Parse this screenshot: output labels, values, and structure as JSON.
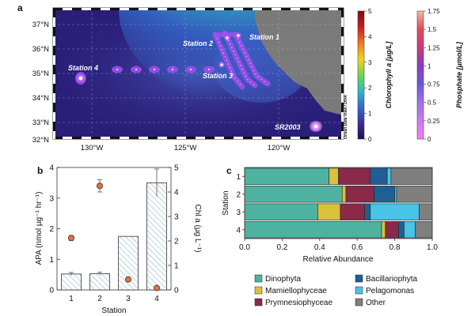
{
  "figure": {
    "panel_labels": [
      "a",
      "b",
      "c"
    ]
  },
  "map": {
    "lat_ticks": [
      "37°N",
      "36°N",
      "35°N",
      "34°N",
      "33°N",
      "32°N"
    ],
    "lon_ticks": [
      "130°W",
      "125°W",
      "120°W"
    ],
    "watermark": "Ocean Data View / DIVA",
    "stations": [
      {
        "name": "Station 1",
        "lon": -120.6,
        "lat": 36.3
      },
      {
        "name": "Station 2",
        "lon": -121.6,
        "lat": 36.2
      },
      {
        "name": "Station 3",
        "lon": -122.0,
        "lat": 35.15
      },
      {
        "name": "Station 4",
        "lon": -129.9,
        "lat": 34.7
      },
      {
        "name": "SR2003",
        "lon": -118.6,
        "lat": 32.55
      }
    ],
    "colorbar_chl": {
      "label": "Chlorophyll a [µg/L]",
      "ticks": [
        "5",
        "4",
        "3",
        "2",
        "1",
        "0"
      ],
      "colors": [
        "#7a0d0d",
        "#c81e1e",
        "#f07820",
        "#f2d21a",
        "#6fd650",
        "#2fb8c8",
        "#3468cc",
        "#3a2f9a",
        "#1c1050"
      ]
    },
    "colorbar_po4": {
      "label": "Phosphate [µmol/L]",
      "ticks": [
        "1.75",
        "1.5",
        "1.25",
        "1",
        "0.75",
        "0.5",
        "0.25",
        "0"
      ],
      "colors": [
        "#f2b8a0",
        "#e6475a",
        "#c83c7a",
        "#8a3cc8",
        "#6a58e0",
        "#a070ee",
        "#cc78f0",
        "#f080f0"
      ]
    }
  },
  "chart_data": [
    {
      "type": "bar",
      "panel": "b",
      "categories": [
        "1",
        "2",
        "3",
        "4"
      ],
      "xlabel": "Station",
      "ylabel": "APA (nmol µg⁻¹ hr⁻¹)",
      "ylabel_right": "Chl a (µg L⁻¹)",
      "ylim": [
        0,
        4
      ],
      "ylim_right": [
        0,
        5
      ],
      "yticks": [
        "0",
        "1",
        "2",
        "3",
        "4"
      ],
      "yticks_right": [
        "0",
        "1",
        "2",
        "3",
        "4",
        "5"
      ],
      "series": [
        {
          "name": "APA",
          "kind": "bar",
          "axis": "left",
          "values": [
            0.52,
            0.53,
            1.75,
            3.5
          ],
          "errors": [
            0.05,
            0.05,
            0.0,
            0.45
          ]
        },
        {
          "name": "Chl a",
          "kind": "point",
          "axis": "right",
          "values": [
            2.12,
            4.25,
            0.43,
            0.08
          ],
          "errors": [
            0.1,
            0.25,
            0.0,
            0.0
          ]
        }
      ]
    },
    {
      "type": "bar",
      "panel": "c",
      "orientation": "horizontal",
      "stacked": true,
      "categories": [
        "1",
        "2",
        "3",
        "4"
      ],
      "xlabel": "Relative Abundance",
      "ylabel": "Station",
      "xlim": [
        0,
        1
      ],
      "xticks": [
        "0.0",
        "0.2",
        "0.4",
        "0.6",
        "0.8",
        "1.0"
      ],
      "series": [
        {
          "name": "Dinophyta",
          "color": "#4db3a0",
          "values": [
            0.45,
            0.52,
            0.39,
            0.73
          ]
        },
        {
          "name": "Mamiellophyceae",
          "color": "#d9c23a",
          "values": [
            0.05,
            0.02,
            0.12,
            0.02
          ]
        },
        {
          "name": "Prymnesiophyceae",
          "color": "#8a2948",
          "values": [
            0.17,
            0.15,
            0.13,
            0.07
          ]
        },
        {
          "name": "Bacillariophyta",
          "color": "#1f5f94",
          "values": [
            0.09,
            0.11,
            0.03,
            0.03
          ]
        },
        {
          "name": "Pelagomonas",
          "color": "#49c3e6",
          "values": [
            0.02,
            0.01,
            0.26,
            0.06
          ]
        },
        {
          "name": "Other",
          "color": "#7f7f7f",
          "values": [
            0.22,
            0.19,
            0.07,
            0.09
          ]
        }
      ]
    }
  ]
}
